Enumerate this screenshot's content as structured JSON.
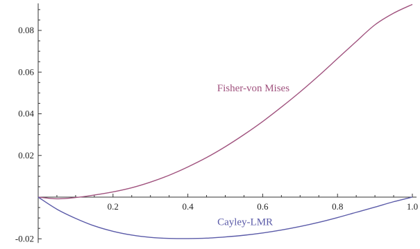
{
  "chart_data": {
    "type": "line",
    "title": "",
    "xlabel": "",
    "ylabel": "",
    "xlim": [
      0,
      1
    ],
    "ylim": [
      -0.02,
      0.093
    ],
    "x_ticks": [
      0.2,
      0.4,
      0.6,
      0.8,
      1.0
    ],
    "x_tick_labels": [
      "0.2",
      "0.4",
      "0.6",
      "0.8",
      "1.0"
    ],
    "y_ticks": [
      -0.02,
      0.02,
      0.04,
      0.06,
      0.08
    ],
    "y_tick_labels": [
      "-0.02",
      "0.02",
      "0.04",
      "0.06",
      "0.08"
    ],
    "grid": false,
    "series": [
      {
        "name": "Fisher-von Mises",
        "color": "#a0527e",
        "x": [
          0,
          0.05,
          0.1,
          0.15,
          0.2,
          0.25,
          0.3,
          0.35,
          0.4,
          0.45,
          0.5,
          0.55,
          0.6,
          0.65,
          0.7,
          0.75,
          0.8,
          0.85,
          0.9,
          0.95,
          1.0
        ],
        "y": [
          0,
          -0.0008,
          -0.0002,
          0.001,
          0.0025,
          0.0045,
          0.0072,
          0.0105,
          0.0145,
          0.019,
          0.0242,
          0.03,
          0.0363,
          0.0432,
          0.0505,
          0.0583,
          0.0665,
          0.0747,
          0.0827,
          0.0883,
          0.0925
        ]
      },
      {
        "name": "Cayley-LMR",
        "color": "#5a5aa8",
        "x": [
          0,
          0.05,
          0.1,
          0.15,
          0.2,
          0.25,
          0.3,
          0.35,
          0.4,
          0.45,
          0.5,
          0.55,
          0.6,
          0.65,
          0.7,
          0.75,
          0.8,
          0.85,
          0.9,
          0.95,
          1.0
        ],
        "y": [
          0,
          -0.0058,
          -0.0102,
          -0.0138,
          -0.0164,
          -0.0182,
          -0.0193,
          -0.0198,
          -0.0199,
          -0.0197,
          -0.0191,
          -0.0183,
          -0.0172,
          -0.0158,
          -0.0141,
          -0.0121,
          -0.0098,
          -0.0073,
          -0.0048,
          -0.0022,
          0.0
        ]
      }
    ],
    "annotations": [
      {
        "text": "Fisher-von Mises",
        "x": 0.575,
        "y": 0.0508,
        "series": 0
      },
      {
        "text": "Cayley-LMR",
        "x": 0.553,
        "y": -0.0135,
        "series": 1
      }
    ]
  }
}
